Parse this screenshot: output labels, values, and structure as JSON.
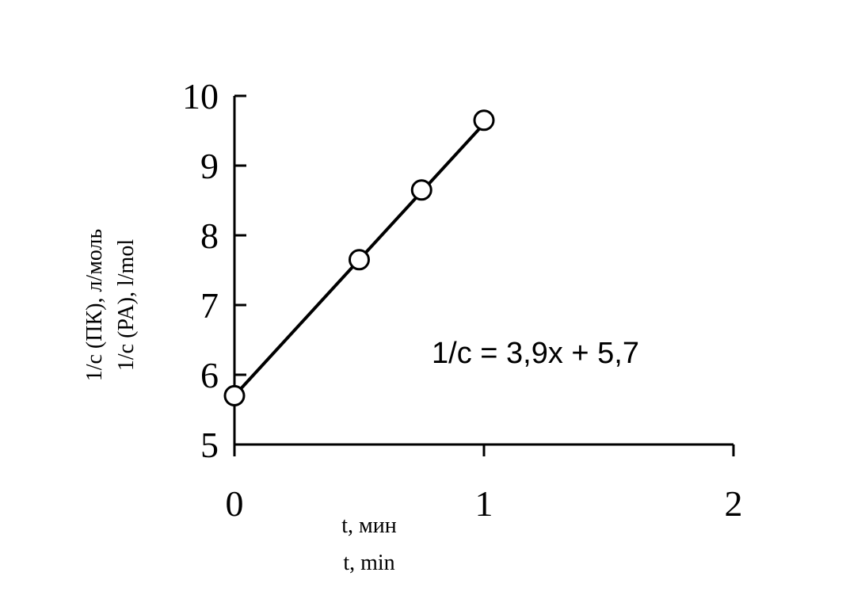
{
  "chart_data": {
    "type": "scatter",
    "xlabel": [
      "t, мин",
      "t, min"
    ],
    "ylabel": [
      "1/c (ПК), л/моль",
      "1/c (PA), l/mol"
    ],
    "xlim": [
      0,
      2
    ],
    "ylim": [
      5,
      10
    ],
    "x_ticks": [
      "0",
      "1",
      "2"
    ],
    "y_ticks": [
      "5",
      "6",
      "7",
      "8",
      "9",
      "10"
    ],
    "grid": false,
    "legend": "none",
    "series": [
      {
        "points": [
          {
            "x": 0,
            "y": 5.7
          },
          {
            "x": 0.5,
            "y": 7.65
          },
          {
            "x": 0.75,
            "y": 8.65
          },
          {
            "x": 1,
            "y": 9.65
          }
        ],
        "marker": "open-circle"
      }
    ],
    "trendline": {
      "slope": 3.9,
      "intercept": 5.7,
      "x_range": [
        0,
        1
      ]
    },
    "annotation": "1/c = 3,9x + 5,7"
  }
}
